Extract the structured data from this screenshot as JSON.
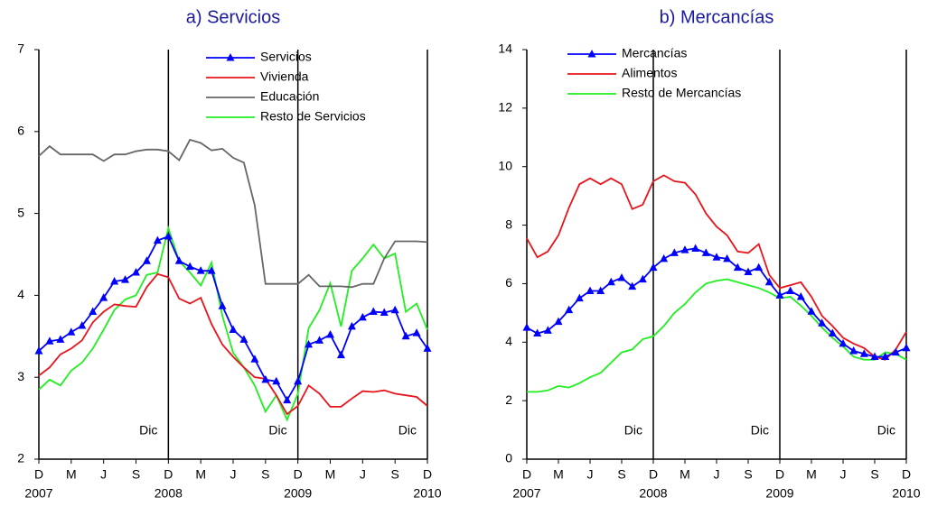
{
  "chart_data": [
    {
      "type": "line",
      "title": "a) Servicios",
      "categories": [
        "D",
        null,
        null,
        "M",
        null,
        null,
        "J",
        null,
        null,
        "S",
        null,
        null,
        "D",
        null,
        null,
        "M",
        null,
        null,
        "J",
        null,
        null,
        "S",
        null,
        null,
        "D",
        null,
        null,
        "M",
        null,
        null,
        "J",
        null,
        null,
        "S",
        null,
        null,
        "D"
      ],
      "year_ticks": [
        2007,
        2008,
        2009,
        2010
      ],
      "vlines": [
        {
          "x": 12,
          "label": "Dic"
        },
        {
          "x": 24,
          "label": "Dic"
        },
        {
          "x": 36,
          "label": "Dic"
        }
      ],
      "ylim": [
        2,
        7
      ],
      "yticks": [
        2,
        3,
        4,
        5,
        6,
        7
      ],
      "grid": false,
      "legend": "upper right",
      "series": [
        {
          "name": "Servicios",
          "color": "#0000ff",
          "marker": "triangle",
          "values": [
            3.32,
            3.44,
            3.46,
            3.55,
            3.63,
            3.8,
            3.97,
            4.17,
            4.19,
            4.28,
            4.42,
            4.67,
            4.72,
            4.42,
            4.35,
            4.3,
            4.3,
            3.87,
            3.58,
            3.46,
            3.22,
            2.97,
            2.95,
            2.72,
            2.95,
            3.4,
            3.45,
            3.52,
            3.27,
            3.62,
            3.73,
            3.8,
            3.79,
            3.82,
            3.5,
            3.54,
            3.35
          ]
        },
        {
          "name": "Vivienda",
          "color": "#e8141c",
          "values": [
            3.02,
            3.12,
            3.28,
            3.35,
            3.45,
            3.67,
            3.8,
            3.89,
            3.87,
            3.86,
            4.1,
            4.26,
            4.22,
            3.96,
            3.9,
            3.97,
            3.65,
            3.4,
            3.25,
            3.12,
            3.0,
            2.98,
            2.78,
            2.55,
            2.65,
            2.9,
            2.8,
            2.64,
            2.64,
            2.74,
            2.83,
            2.82,
            2.84,
            2.8,
            2.78,
            2.76,
            2.65
          ]
        },
        {
          "name": "Educación",
          "color": "#666666",
          "values": [
            5.7,
            5.82,
            5.72,
            5.72,
            5.72,
            5.72,
            5.64,
            5.72,
            5.72,
            5.76,
            5.78,
            5.78,
            5.76,
            5.65,
            5.9,
            5.86,
            5.77,
            5.79,
            5.68,
            5.62,
            5.1,
            4.14,
            4.14,
            4.14,
            4.14,
            4.25,
            4.11,
            4.11,
            4.11,
            4.1,
            4.14,
            4.14,
            4.45,
            4.66,
            4.66,
            4.66,
            4.65
          ]
        },
        {
          "name": "Resto de Servicios",
          "color": "#22ee22",
          "values": [
            2.85,
            2.97,
            2.9,
            3.08,
            3.18,
            3.35,
            3.58,
            3.82,
            3.95,
            4.0,
            4.25,
            4.28,
            4.82,
            4.42,
            4.28,
            4.12,
            4.4,
            3.75,
            3.3,
            3.12,
            2.9,
            2.58,
            2.78,
            2.48,
            2.8,
            3.6,
            3.82,
            4.15,
            3.62,
            4.3,
            4.45,
            4.62,
            4.45,
            4.51,
            3.8,
            3.9,
            3.58
          ]
        }
      ]
    },
    {
      "type": "line",
      "title": "b) Mercancías",
      "categories": [
        "D",
        null,
        null,
        "M",
        null,
        null,
        "J",
        null,
        null,
        "S",
        null,
        null,
        "D",
        null,
        null,
        "M",
        null,
        null,
        "J",
        null,
        null,
        "S",
        null,
        null,
        "D",
        null,
        null,
        "M",
        null,
        null,
        "J",
        null,
        null,
        "S",
        null,
        null,
        "D"
      ],
      "year_ticks": [
        2007,
        2008,
        2009,
        2010
      ],
      "vlines": [
        {
          "x": 12,
          "label": "Dic"
        },
        {
          "x": 24,
          "label": "Dic"
        },
        {
          "x": 36,
          "label": "Dic"
        }
      ],
      "ylim": [
        0,
        14
      ],
      "yticks": [
        0,
        2,
        4,
        6,
        8,
        10,
        12,
        14
      ],
      "grid": false,
      "legend": "upper left",
      "series": [
        {
          "name": "Mercancías",
          "color": "#0000ff",
          "marker": "triangle",
          "values": [
            4.5,
            4.3,
            4.4,
            4.7,
            5.1,
            5.5,
            5.75,
            5.75,
            6.05,
            6.2,
            5.9,
            6.15,
            6.55,
            6.85,
            7.05,
            7.15,
            7.2,
            7.05,
            6.9,
            6.85,
            6.55,
            6.4,
            6.55,
            6.05,
            5.6,
            5.75,
            5.55,
            5.05,
            4.65,
            4.3,
            3.95,
            3.7,
            3.6,
            3.5,
            3.5,
            3.65,
            3.8
          ]
        },
        {
          "name": "Alimentos",
          "color": "#e8141c",
          "values": [
            7.55,
            6.9,
            7.1,
            7.65,
            8.6,
            9.4,
            9.6,
            9.4,
            9.6,
            9.4,
            8.55,
            8.7,
            9.5,
            9.7,
            9.5,
            9.45,
            9.05,
            8.4,
            7.95,
            7.65,
            7.1,
            7.05,
            7.35,
            6.3,
            5.85,
            5.95,
            6.05,
            5.55,
            4.9,
            4.55,
            4.15,
            3.95,
            3.8,
            3.5,
            3.4,
            3.75,
            4.35
          ]
        },
        {
          "name": "Resto de Mercancías",
          "color": "#22ee22",
          "values": [
            2.3,
            2.3,
            2.35,
            2.5,
            2.45,
            2.6,
            2.8,
            2.95,
            3.3,
            3.65,
            3.75,
            4.1,
            4.2,
            4.55,
            5.0,
            5.3,
            5.7,
            6.0,
            6.1,
            6.15,
            6.05,
            5.95,
            5.85,
            5.7,
            5.5,
            5.55,
            5.25,
            4.9,
            4.5,
            4.15,
            3.85,
            3.5,
            3.4,
            3.4,
            3.65,
            3.6,
            3.4
          ]
        }
      ]
    }
  ]
}
